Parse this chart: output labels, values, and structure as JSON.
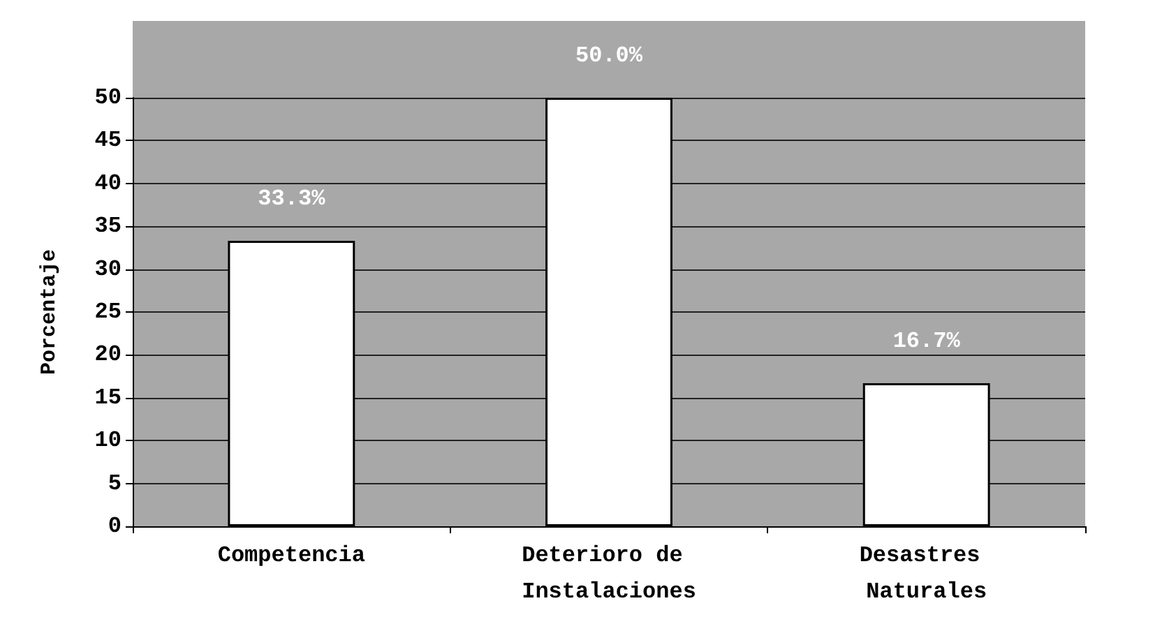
{
  "chart_data": {
    "type": "bar",
    "ylabel": "Porcentaje",
    "categories": [
      "Competencia",
      "Deterioro de Instalaciones",
      "Desastres Naturales"
    ],
    "values": [
      33.3,
      50.0,
      16.7
    ],
    "value_labels": [
      "33.3%",
      "50.0%",
      "16.7%"
    ],
    "color": "#ffffff",
    "ylim": [
      0,
      50
    ],
    "yticks": [
      0,
      5,
      10,
      15,
      20,
      25,
      30,
      35,
      40,
      45,
      50
    ],
    "grid": "y"
  }
}
